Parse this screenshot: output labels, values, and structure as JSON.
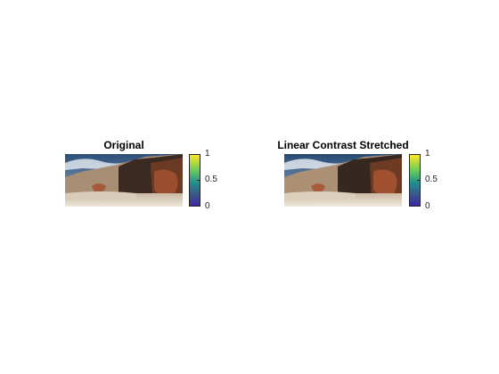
{
  "figure": {
    "panels": [
      {
        "title": "Original",
        "colorbar": {
          "ticks": [
            "1",
            "0.5",
            "0"
          ],
          "colors": [
            "#fde724",
            "#6ccd5a",
            "#20908d",
            "#3b528b",
            "#3d26a8"
          ]
        }
      },
      {
        "title": "Linear Contrast Stretched",
        "colorbar": {
          "ticks": [
            "1",
            "0.5",
            "0"
          ],
          "colors": [
            "#fde724",
            "#6ccd5a",
            "#20908d",
            "#3b528b",
            "#3d26a8"
          ]
        }
      }
    ]
  }
}
